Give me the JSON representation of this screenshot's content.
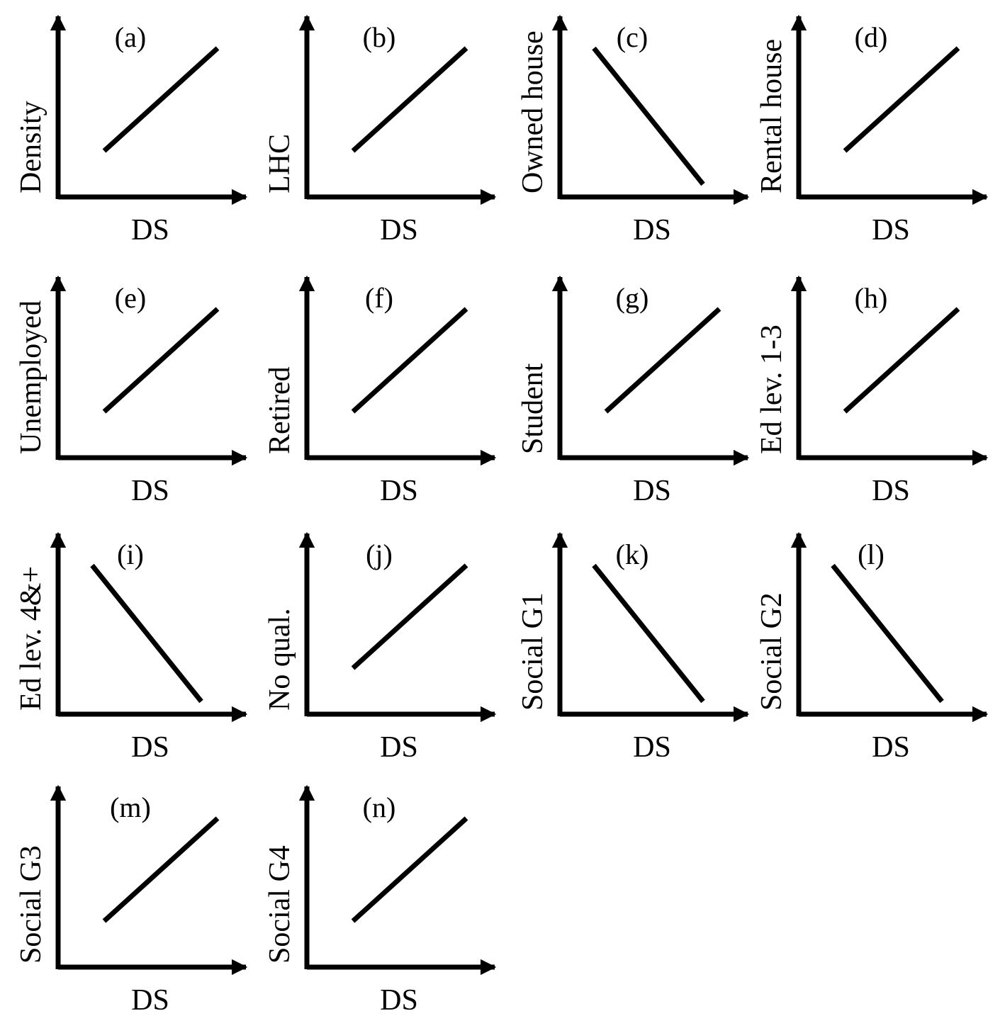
{
  "colors": {
    "ink": "#000000",
    "background": "#ffffff"
  },
  "panels": [
    {
      "id": "a",
      "tag": "(a)",
      "ylabel": "Density",
      "xlabel": "DS",
      "trend": "increasing"
    },
    {
      "id": "b",
      "tag": "(b)",
      "ylabel": "LHC",
      "xlabel": "DS",
      "trend": "increasing"
    },
    {
      "id": "c",
      "tag": "(c)",
      "ylabel": "Owned house",
      "xlabel": "DS",
      "trend": "decreasing"
    },
    {
      "id": "d",
      "tag": "(d)",
      "ylabel": "Rental house",
      "xlabel": "DS",
      "trend": "increasing"
    },
    {
      "id": "e",
      "tag": "(e)",
      "ylabel": "Unemployed",
      "xlabel": "DS",
      "trend": "increasing"
    },
    {
      "id": "f",
      "tag": "(f)",
      "ylabel": "Retired",
      "xlabel": "DS",
      "trend": "increasing"
    },
    {
      "id": "g",
      "tag": "(g)",
      "ylabel": "Student",
      "xlabel": "DS",
      "trend": "increasing"
    },
    {
      "id": "h",
      "tag": "(h)",
      "ylabel": "Ed lev. 1-3",
      "xlabel": "DS",
      "trend": "increasing"
    },
    {
      "id": "i",
      "tag": "(i)",
      "ylabel": "Ed lev. 4&+",
      "xlabel": "DS",
      "trend": "decreasing"
    },
    {
      "id": "j",
      "tag": "(j)",
      "ylabel": "No qual.",
      "xlabel": "DS",
      "trend": "increasing"
    },
    {
      "id": "k",
      "tag": "(k)",
      "ylabel": "Social G1",
      "xlabel": "DS",
      "trend": "decreasing"
    },
    {
      "id": "l",
      "tag": "(l)",
      "ylabel": "Social G2",
      "xlabel": "DS",
      "trend": "decreasing"
    },
    {
      "id": "m",
      "tag": "(m)",
      "ylabel": "Social G3",
      "xlabel": "DS",
      "trend": "increasing"
    },
    {
      "id": "n",
      "tag": "(n)",
      "ylabel": "Social G4",
      "xlabel": "DS",
      "trend": "increasing"
    }
  ]
}
